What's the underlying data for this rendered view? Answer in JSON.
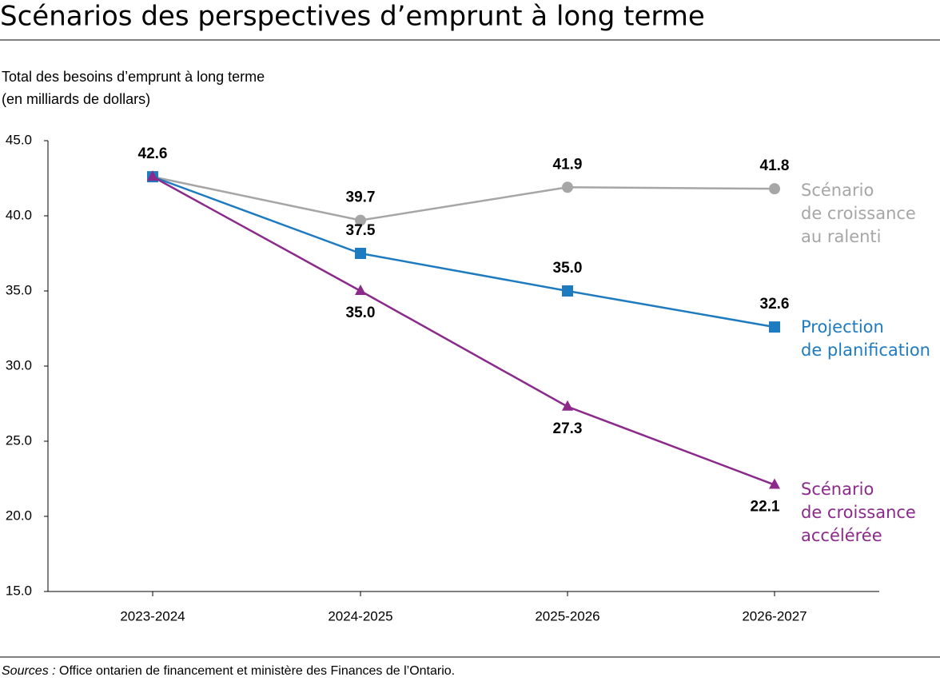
{
  "chart_data": {
    "type": "line",
    "title": "Scénarios des perspectives d’emprunt à long terme",
    "y_label": [
      "Total des besoins d’emprunt à long terme",
      "(en milliards de dollars)"
    ],
    "categories": [
      "2023-2024",
      "2024-2025",
      "2025-2026",
      "2026-2027"
    ],
    "series": [
      {
        "name": "Scénario\nde croissance\nau ralenti",
        "color": "#a6a6a6",
        "marker": "circle",
        "values": [
          42.6,
          39.7,
          41.9,
          41.8
        ],
        "value_labels": [
          null,
          "39.7",
          "41.9",
          "41.8"
        ]
      },
      {
        "name": "Projection\nde planification",
        "color": "#1f7bbf",
        "marker": "square",
        "values": [
          42.6,
          37.5,
          35.0,
          32.6
        ],
        "value_labels": [
          null,
          "37.5",
          "35.0",
          "32.6"
        ]
      },
      {
        "name": "Scénario\nde croissance\naccélérée",
        "color": "#8b2a8b",
        "marker": "triangle",
        "values": [
          42.6,
          35.0,
          27.3,
          22.1
        ],
        "value_labels": [
          "42.6",
          "35.0",
          "27.3",
          "22.1"
        ]
      }
    ],
    "ylim": [
      15,
      45
    ],
    "yticks": [
      {
        "value": 15,
        "label": "15.0"
      },
      {
        "value": 20,
        "label": "20.0"
      },
      {
        "value": 25,
        "label": "25.0"
      },
      {
        "value": 30,
        "label": "30.0"
      },
      {
        "value": 35,
        "label": "35.0"
      },
      {
        "value": 40,
        "label": "40.0"
      },
      {
        "value": 45,
        "label": "45.0"
      }
    ],
    "grid": false
  },
  "source": {
    "label": "Sources :",
    "text": "Office ontarien de financement et ministère des Finances de l’Ontario."
  }
}
